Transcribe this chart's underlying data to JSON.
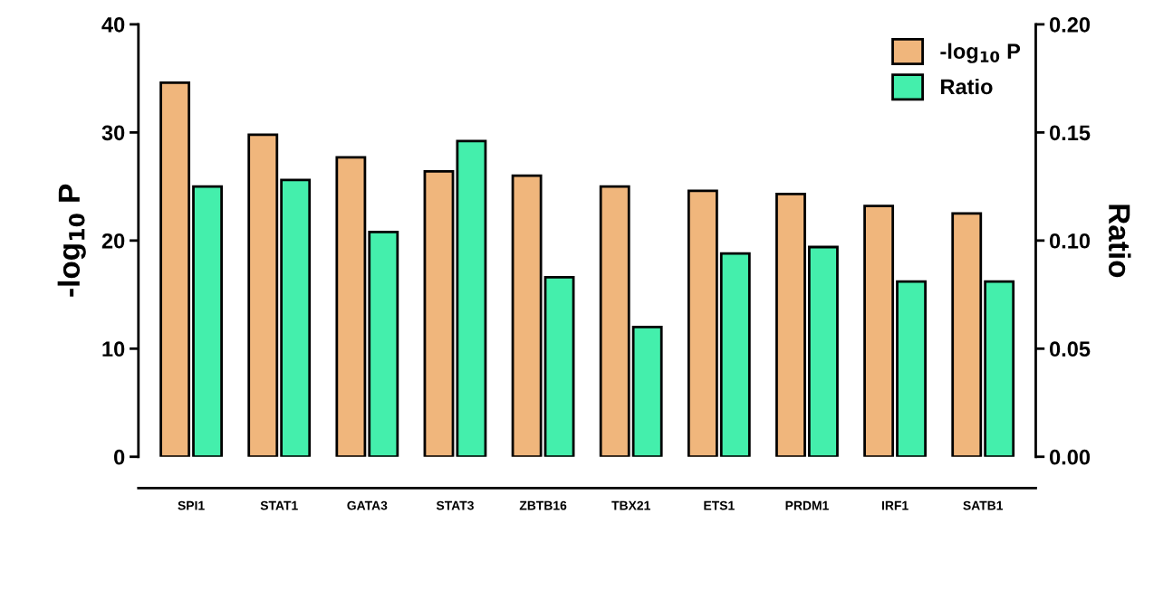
{
  "chart_data": {
    "type": "bar",
    "ylabel": "-log$_{10}$ P",
    "y2label": "Ratio",
    "categories": [
      "SPI1",
      "STAT1",
      "GATA3",
      "STAT3",
      "ZBTB16",
      "TBX21",
      "ETS1",
      "PRDM1",
      "IRF1",
      "SATB1"
    ],
    "series": [
      {
        "name": "-log$_{10}$ P",
        "color": "#f0b67c",
        "values": [
          34.6,
          29.8,
          27.7,
          26.4,
          26.0,
          25.0,
          24.6,
          24.3,
          23.2,
          22.5
        ]
      },
      {
        "name": "Ratio",
        "color": "#44efac",
        "axis": "y2",
        "values": [
          0.125,
          0.128,
          0.104,
          0.146,
          0.083,
          0.06,
          0.094,
          0.097,
          0.081,
          0.081
        ]
      }
    ],
    "ylim": [
      0,
      40
    ],
    "yticks": [
      0,
      10,
      20,
      30,
      40
    ],
    "y2lim": [
      0,
      0.2
    ],
    "y2ticks": [
      {
        "value": 0,
        "label": "0.00"
      },
      {
        "value": 0.05,
        "label": "0.05"
      },
      {
        "value": 0.1,
        "label": "0.10"
      },
      {
        "value": 0.15,
        "label": "0.15"
      },
      {
        "value": 0.2,
        "label": "0.20"
      }
    ],
    "grid": false,
    "legend": "top right"
  }
}
